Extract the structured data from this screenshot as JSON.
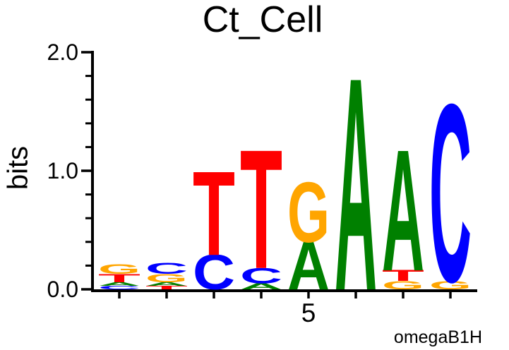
{
  "figure": {
    "title": "Ct_Cell",
    "y_axis_label": "bits",
    "footer_label": "omegaB1H"
  },
  "chart_data": {
    "type": "sequence-logo",
    "title": "Ct_Cell",
    "xlabel": "",
    "ylabel": "bits",
    "ylim": [
      0,
      2
    ],
    "y_major_ticks": [
      {
        "value": 0,
        "label": "0.0"
      },
      {
        "value": 1,
        "label": "1.0"
      },
      {
        "value": 2,
        "label": "2.0"
      }
    ],
    "y_minor_tick_step": 0.2,
    "x_tick_labels": [
      {
        "position": 5,
        "label": "5"
      }
    ],
    "num_positions": 8,
    "stack_order": "bottom-to-top",
    "footer_label": "omegaB1H",
    "colors": {
      "A": "#008000",
      "C": "#0000ff",
      "G": "#ffa500",
      "T": "#ff0000"
    },
    "stacks": [
      {
        "position": 1,
        "letters": [
          {
            "base": "C",
            "bits": 0.03
          },
          {
            "base": "A",
            "bits": 0.03
          },
          {
            "base": "T",
            "bits": 0.07
          },
          {
            "base": "G",
            "bits": 0.08
          }
        ]
      },
      {
        "position": 2,
        "letters": [
          {
            "base": "T",
            "bits": 0.03
          },
          {
            "base": "A",
            "bits": 0.03
          },
          {
            "base": "G",
            "bits": 0.07
          },
          {
            "base": "C",
            "bits": 0.09
          }
        ]
      },
      {
        "position": 3,
        "letters": [
          {
            "base": "C",
            "bits": 0.29
          },
          {
            "base": "T",
            "bits": 0.7
          }
        ]
      },
      {
        "position": 4,
        "letters": [
          {
            "base": "A",
            "bits": 0.05
          },
          {
            "base": "C",
            "bits": 0.13
          },
          {
            "base": "T",
            "bits": 0.99
          }
        ]
      },
      {
        "position": 5,
        "letters": [
          {
            "base": "A",
            "bits": 0.4
          },
          {
            "base": "G",
            "bits": 0.5
          }
        ]
      },
      {
        "position": 6,
        "letters": [
          {
            "base": "A",
            "bits": 1.77
          }
        ]
      },
      {
        "position": 7,
        "letters": [
          {
            "base": "G",
            "bits": 0.07
          },
          {
            "base": "T",
            "bits": 0.09
          },
          {
            "base": "A",
            "bits": 1.01
          }
        ]
      },
      {
        "position": 8,
        "letters": [
          {
            "base": "G",
            "bits": 0.07
          },
          {
            "base": "C",
            "bits": 1.48
          }
        ]
      }
    ]
  }
}
